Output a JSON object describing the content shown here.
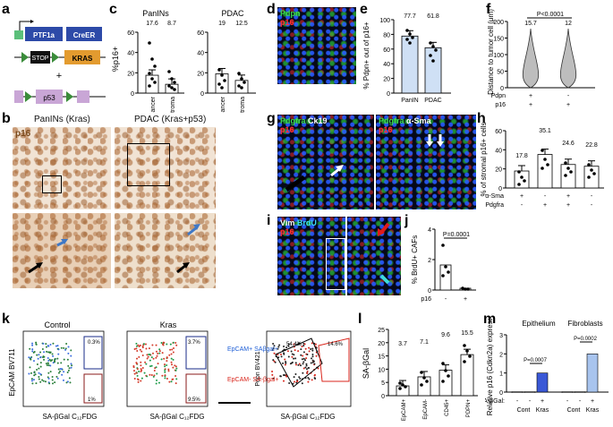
{
  "panel_labels": [
    "a",
    "b",
    "c",
    "d",
    "e",
    "f",
    "g",
    "h",
    "i",
    "j",
    "k",
    "l",
    "m"
  ],
  "a": {
    "ptf1a": "PTF1a",
    "creer": "CreER",
    "stop": "STOP",
    "kras": "KRAS",
    "plus": "+",
    "p53": "p53"
  },
  "b": {
    "title_left": "PanINs (Kras)",
    "title_right": "PDAC (Kras+p53)",
    "stain": "p16"
  },
  "c": {
    "ylabel": "%p16+",
    "left_title": "PanINs",
    "right_title": "PDAC",
    "cats": [
      "Cancer",
      "Stroma"
    ],
    "left_vals": [
      "17.6",
      "8.7"
    ],
    "right_vals": [
      "19",
      "12.5"
    ],
    "yticks": [
      "0",
      "20",
      "40",
      "60"
    ]
  },
  "d": {
    "pdpn": "Pdpn",
    "p16": "p16"
  },
  "e": {
    "ylabel": "% Pdpn+ out of p16+",
    "vals": [
      "77.7",
      "61.8"
    ],
    "cats": [
      "PanIN",
      "PDAC"
    ],
    "yticks": [
      "0",
      "20",
      "40",
      "60",
      "80",
      "100"
    ]
  },
  "f": {
    "ylabel": "Distance to tumor cell (μm)",
    "pval": "P<0.0001",
    "vals": [
      "15.7",
      "12"
    ],
    "row1": "Pdpn",
    "row2": "p16",
    "r1v": [
      "+",
      "-"
    ],
    "r2v": [
      "+",
      "+"
    ],
    "yticks": [
      "0",
      "50",
      "100",
      "150",
      "200"
    ]
  },
  "g": {
    "left_a": "Pdgfra",
    "left_b": "Ck19",
    "left_c": "p16",
    "right_a": "Pdgfra",
    "right_b": "α-Sma",
    "right_c": "p16"
  },
  "h": {
    "ylabel": "% of stromal p16+ cells",
    "vals": [
      "17.8",
      "35.1",
      "24.6",
      "22.8"
    ],
    "row1": "α-Sma",
    "row2": "Pdgfra",
    "r1v": [
      "+",
      "-",
      "+",
      "-"
    ],
    "r2v": [
      "-",
      "+",
      "+",
      "-"
    ],
    "yticks": [
      "0",
      "20",
      "40",
      "60"
    ]
  },
  "i": {
    "vim": "Vim",
    "brdu": "BrdU",
    "p16": "p16"
  },
  "j": {
    "ylabel": "% BrdU+ CAFs",
    "pval": "P=0.0001",
    "row": "p16",
    "rv": [
      "-",
      "+"
    ],
    "yticks": [
      "0",
      "2",
      "4"
    ]
  },
  "k": {
    "titles": [
      "Control",
      "Kras"
    ],
    "ylabel": "EpCAM BV711",
    "xlabel": "SA-βGal C₁₂FDG",
    "ylabel3": "Pdpn BV421",
    "xlabel3": "SA-βGal C₁₂FDG",
    "ctrl_gate_top": "0.3%",
    "ctrl_gate_bot": "1%",
    "kras_gate_top": "3.7%",
    "kras_gate_bot": "9.5%",
    "legend_top": "EpCAM+ SAβgal+",
    "legend_bot": "EpCAM- SA-βgal+",
    "g3_left": "54.4%",
    "g3_right": "14.6%",
    "colors": {
      "blue": "#1f5fd6",
      "red": "#d9261c"
    }
  },
  "l": {
    "ylabel": "SA-βGal",
    "vals": [
      "3.7",
      "7.1",
      "9.6",
      "15.5"
    ],
    "cats": [
      "EpCAM+",
      "EpCAM-",
      "CD45+",
      "PDPN+"
    ],
    "yticks": [
      "0",
      "5",
      "10",
      "15",
      "20",
      "25"
    ]
  },
  "m": {
    "ylabel": "Relative p16 (Cdkn2a) expression",
    "title_left": "Epithelium",
    "title_right": "Fibroblasts",
    "pval_left": "P=0.0007",
    "pval_right": "P=0.0002",
    "row": "SA-βGal:",
    "rv": [
      "-",
      "-",
      "+",
      "-",
      "-",
      "+"
    ],
    "groups": [
      "Cont",
      "Kras",
      "Cont",
      "Kras"
    ],
    "yticks": [
      "0",
      "1",
      "2",
      "3"
    ]
  }
}
